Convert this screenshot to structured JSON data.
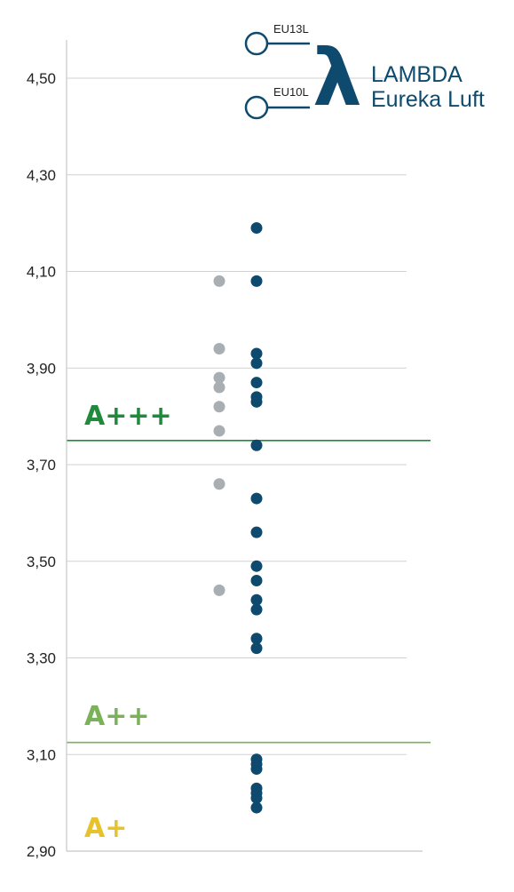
{
  "brand": {
    "line1": "LAMBDA",
    "line2": "Eureka Luft",
    "symbol": "λ",
    "color": "#0d4a6e"
  },
  "model_labels": {
    "upper": "EU13L",
    "lower": "EU10L",
    "marker_color": "#4cb8e0"
  },
  "energy_classes": [
    {
      "label": "A+++",
      "color": "#1f8a3b",
      "threshold": 3.75
    },
    {
      "label": "A++",
      "color": "#7ab25a",
      "threshold": 3.125
    },
    {
      "label": "A+",
      "color": "#e8c22a"
    }
  ],
  "chart_data": {
    "type": "scatter",
    "ylim": [
      2.9,
      4.58
    ],
    "yticks": [
      2.9,
      3.1,
      3.3,
      3.5,
      3.7,
      3.9,
      4.1,
      4.3,
      4.5
    ],
    "ytick_labels": [
      "2,90",
      "3,10",
      "3,30",
      "3,50",
      "3,70",
      "3,90",
      "4,10",
      "4,30",
      "4,50"
    ],
    "grid": true,
    "series": [
      {
        "color": "#a9aeb3",
        "values": [
          4.08,
          3.94,
          3.88,
          3.86,
          3.82,
          3.77,
          3.66,
          3.44
        ]
      },
      {
        "color": "#0d4a6e",
        "values": [
          4.19,
          4.08,
          3.93,
          3.91,
          3.87,
          3.84,
          3.83,
          3.74,
          3.63,
          3.56,
          3.49,
          3.46,
          3.42,
          3.4,
          3.34,
          3.32,
          3.09,
          3.08,
          3.07,
          3.03,
          3.02,
          3.01,
          2.99
        ]
      },
      {
        "color": "#4cb8e0",
        "values": [
          4.57,
          4.44
        ]
      }
    ]
  }
}
